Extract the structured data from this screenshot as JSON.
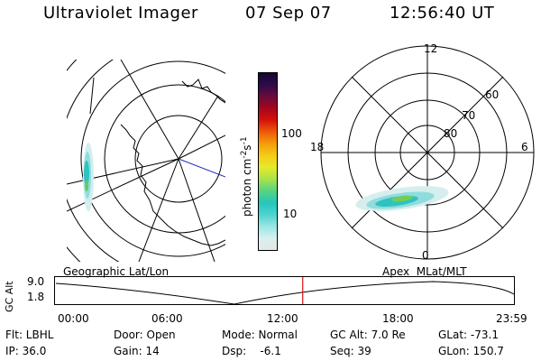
{
  "header": {
    "title": "Ultraviolet Imager",
    "date": "07 Sep 07",
    "time": "12:56:40 UT"
  },
  "geo_panel": {
    "label": "Geographic Lat/Lon"
  },
  "colorbar": {
    "unit": "photon cm",
    "unit_exp": "-2",
    "unit_s": "s",
    "unit_s_exp": "-1",
    "tick_100": "100",
    "tick_10": "10",
    "gradient": [
      "#e6e6e6",
      "#d7f0f0",
      "#9ae6e2",
      "#4cd4d0",
      "#26c6bb",
      "#54d480",
      "#a7e24b",
      "#e6ea2a",
      "#f5cc16",
      "#f59d0c",
      "#ef5a0a",
      "#d6120a",
      "#a6061c",
      "#6a0a3c",
      "#2e0a4a",
      "#14082e"
    ]
  },
  "polar_panel": {
    "label": "Apex  MLat/MLT",
    "mlt_top": "12",
    "mlt_left": "18",
    "mlt_right": "6",
    "mlt_bottom": "0",
    "lat_60": "60",
    "lat_70": "70",
    "lat_80": "80"
  },
  "alt_plot": {
    "ylabel": "GC Alt",
    "ytick_high": "9.0",
    "ytick_low": "1.8",
    "xticks": [
      "00:00",
      "06:00",
      "12:00",
      "18:00",
      "23:59"
    ],
    "marker_time": "12:56:40",
    "marker_color": "#e01010"
  },
  "info": {
    "flt": "Flt: LBHL",
    "ip": "IP: 36.0",
    "door": "Door: Open",
    "gain": "Gain: 14",
    "mode": "Mode: Normal",
    "dsp": "Dsp:    -6.1",
    "gcalt": "GC Alt: 7.0 Re",
    "seq": "Seq: 39",
    "glat": "GLat: -73.1",
    "glon": "GLon: 150.7"
  }
}
